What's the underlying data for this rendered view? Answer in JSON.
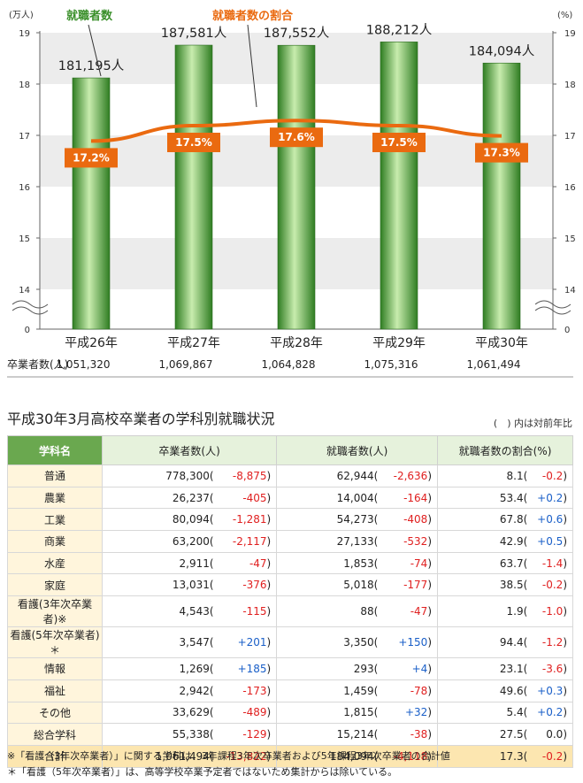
{
  "chart_data": {
    "type": "bar",
    "categories": [
      "平成26年",
      "平成27年",
      "平成28年",
      "平成29年",
      "平成30年"
    ],
    "series": [
      {
        "name": "就職者数",
        "values": [
          181195,
          187581,
          187552,
          188212,
          184094
        ],
        "value_labels": [
          "181,195人",
          "187,581人",
          "187,552人",
          "188,212人",
          "184,094人"
        ],
        "color": "#3a8f2a"
      },
      {
        "name": "就職者数の割合",
        "values": [
          17.2,
          17.5,
          17.6,
          17.5,
          17.3
        ],
        "value_labels": [
          "17.2%",
          "17.5%",
          "17.6%",
          "17.5%",
          "17.3%"
        ],
        "color": "#ea6a10",
        "type": "line"
      }
    ],
    "left_axis": {
      "unit": "(万人)",
      "ticks": [
        "19",
        "18",
        "17",
        "16",
        "15",
        "14",
        "0"
      ],
      "ylim": [
        14,
        19
      ],
      "break": true
    },
    "right_axis": {
      "unit": "(%)",
      "ticks": [
        "19",
        "18",
        "17",
        "16",
        "15",
        "14",
        "0"
      ],
      "ylim": [
        14,
        19
      ],
      "break": true
    },
    "graduates_row": {
      "label": "卒業者数(人)",
      "values": [
        "1,051,320",
        "1,069,867",
        "1,064,828",
        "1,075,316",
        "1,061,494"
      ]
    },
    "grid": "banded"
  },
  "table": {
    "title": "平成30年3月高校卒業者の学科別就職状況",
    "note": "(　) 内は対前年比",
    "headers": [
      "学科名",
      "卒業者数(人)",
      "就職者数(人)",
      "就職者数の割合(%)"
    ],
    "rows": [
      {
        "dept": "普通",
        "grads": "778,300",
        "grads_diff": "-8,875",
        "emp": "62,944",
        "emp_diff": "-2,636",
        "rate": "8.1",
        "rate_diff": "-0.2"
      },
      {
        "dept": "農業",
        "grads": "26,237",
        "grads_diff": "-405",
        "emp": "14,004",
        "emp_diff": "-164",
        "rate": "53.4",
        "rate_diff": "+0.2"
      },
      {
        "dept": "工業",
        "grads": "80,094",
        "grads_diff": "-1,281",
        "emp": "54,273",
        "emp_diff": "-408",
        "rate": "67.8",
        "rate_diff": "+0.6"
      },
      {
        "dept": "商業",
        "grads": "63,200",
        "grads_diff": "-2,117",
        "emp": "27,133",
        "emp_diff": "-532",
        "rate": "42.9",
        "rate_diff": "+0.5"
      },
      {
        "dept": "水産",
        "grads": "2,911",
        "grads_diff": "-47",
        "emp": "1,853",
        "emp_diff": "-74",
        "rate": "63.7",
        "rate_diff": "-1.4"
      },
      {
        "dept": "家庭",
        "grads": "13,031",
        "grads_diff": "-376",
        "emp": "5,018",
        "emp_diff": "-177",
        "rate": "38.5",
        "rate_diff": "-0.2"
      },
      {
        "dept": "看護(3年次卒業者)※",
        "grads": "4,543",
        "grads_diff": "-115",
        "emp": "88",
        "emp_diff": "-47",
        "rate": "1.9",
        "rate_diff": "-1.0"
      },
      {
        "dept": "看護(5年次卒業者)＊",
        "grads": "3,547",
        "grads_diff": "+201",
        "emp": "3,350",
        "emp_diff": "+150",
        "rate": "94.4",
        "rate_diff": "-1.2"
      },
      {
        "dept": "情報",
        "grads": "1,269",
        "grads_diff": "+185",
        "emp": "293",
        "emp_diff": "+4",
        "rate": "23.1",
        "rate_diff": "-3.6"
      },
      {
        "dept": "福祉",
        "grads": "2,942",
        "grads_diff": "-173",
        "emp": "1,459",
        "emp_diff": "-78",
        "rate": "49.6",
        "rate_diff": "+0.3"
      },
      {
        "dept": "その他",
        "grads": "33,629",
        "grads_diff": "-489",
        "emp": "1,815",
        "emp_diff": "+32",
        "rate": "5.4",
        "rate_diff": "+0.2"
      },
      {
        "dept": "総合学科",
        "grads": "55,338",
        "grads_diff": "-129",
        "emp": "15,214",
        "emp_diff": "-38",
        "rate": "27.5",
        "rate_diff": "0.0"
      },
      {
        "dept": "合計",
        "grads": "1,061,494",
        "grads_diff": "-13,822",
        "emp": "184,094",
        "emp_diff": "-4,118",
        "rate": "17.3",
        "rate_diff": "-0.2",
        "total": true
      }
    ],
    "footnotes": [
      "※「看護（3年次卒業者）」に関する学科は、3年課程3年次卒業者および5年課程3年次卒業者の合計値",
      "＊「看護（5年次卒業者）」は、高等学校卒業予定者ではないため集計からは除いている。"
    ]
  },
  "colors": {
    "bar_dark": "#2f7d22",
    "bar_light": "#c8ecae",
    "line": "#ea6a10",
    "band": "#ececec",
    "header_green": "#6aa84f",
    "header_light": "#e6f2dc",
    "dept_bg": "#fff5dc",
    "total_bg": "#fce6b0",
    "neg": "#e02020",
    "pos": "#1a5fc8"
  }
}
